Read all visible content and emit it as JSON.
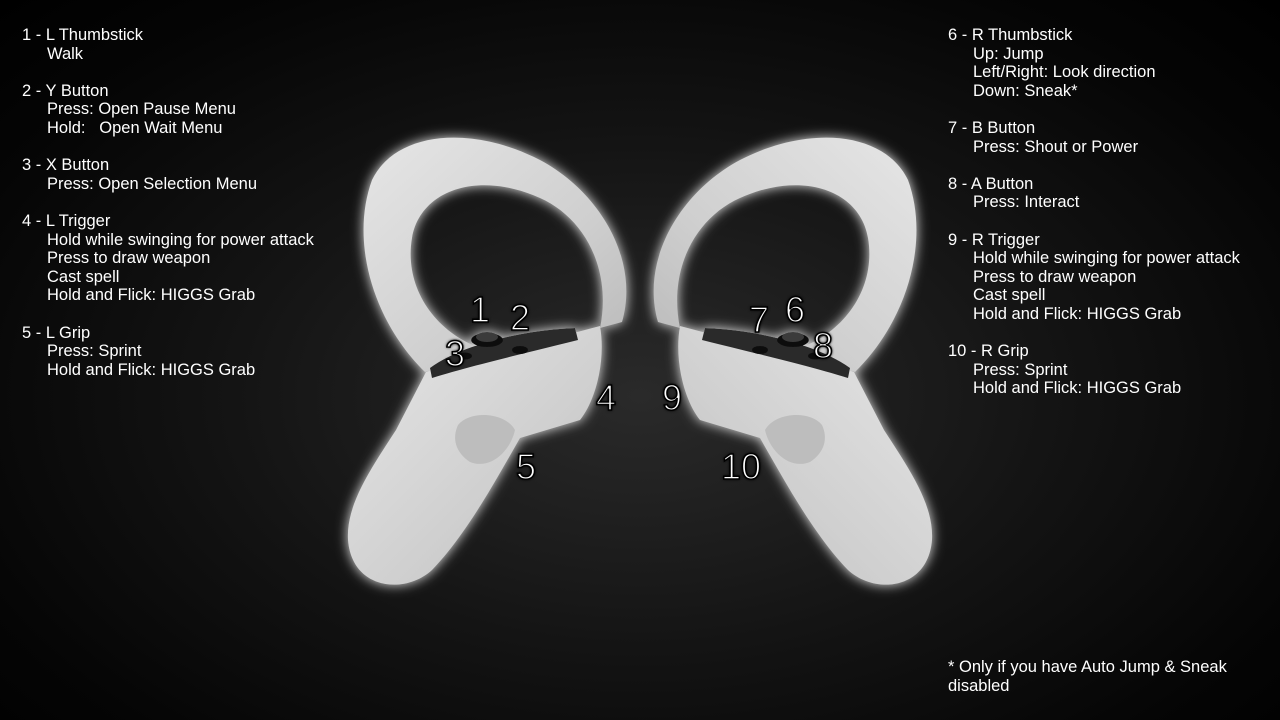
{
  "left_legend": [
    {
      "heading": "1 - L Thumbstick",
      "lines": [
        "Walk"
      ]
    },
    {
      "heading": "2 - Y Button",
      "lines": [
        "Press: Open Pause Menu",
        "Hold:   Open Wait Menu"
      ]
    },
    {
      "heading": "3 - X Button",
      "lines": [
        "Press: Open Selection Menu"
      ]
    },
    {
      "heading": "4 - L Trigger",
      "lines": [
        "Hold while swinging for power attack",
        "Press to draw weapon",
        "Cast spell",
        "Hold and Flick: HIGGS Grab"
      ]
    },
    {
      "heading": "5 - L Grip",
      "lines": [
        "Press: Sprint",
        "Hold and Flick: HIGGS Grab"
      ]
    }
  ],
  "right_legend": [
    {
      "heading": "6 - R Thumbstick",
      "lines": [
        "Up: Jump",
        "Left/Right: Look direction",
        "Down: Sneak*"
      ]
    },
    {
      "heading": "7 - B Button",
      "lines": [
        "Press: Shout or Power"
      ]
    },
    {
      "heading": "8 - A Button",
      "lines": [
        "Press: Interact"
      ]
    },
    {
      "heading": "9 - R Trigger",
      "lines": [
        "Hold while swinging for power attack",
        "Press to draw weapon",
        "Cast spell",
        "Hold and Flick: HIGGS Grab"
      ]
    },
    {
      "heading": "10 - R Grip",
      "lines": [
        "Press: Sprint",
        "Hold and Flick: HIGGS Grab"
      ]
    }
  ],
  "footnote": "* Only if you have Auto Jump & Sneak disabled",
  "callouts": {
    "c1": "1",
    "c2": "2",
    "c3": "3",
    "c4": "4",
    "c5": "5",
    "c6": "6",
    "c7": "7",
    "c8": "8",
    "c9": "9",
    "c10": "10"
  },
  "colors": {
    "background": "#000000",
    "text": "#ffffff",
    "controller_body": "#d8d8d8",
    "controller_glow": "#ffffff",
    "faceplate": "#2a2a2a"
  },
  "icons": {
    "left_controller": "left-vr-controller-image",
    "right_controller": "right-vr-controller-image"
  }
}
